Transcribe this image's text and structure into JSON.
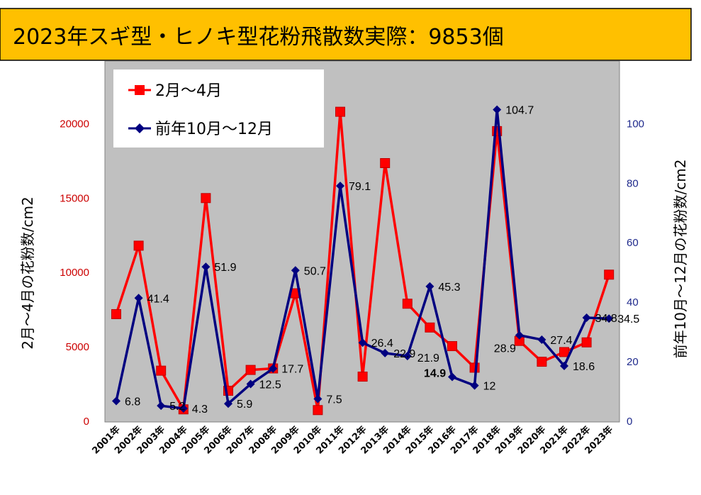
{
  "title": "2023年スギ型・ヒノキ型花粉飛散数実際：9853個",
  "colors": {
    "title_bg": "#FFC000",
    "plot_bg": "#C0C0C0",
    "series_red": "#FF0000",
    "series_navy": "#000080",
    "left_axis_text": "#CC0000",
    "right_axis_text": "#1F2A8C"
  },
  "chart_data": {
    "type": "line",
    "categories": [
      "2001年",
      "2002年",
      "2003年",
      "2004年",
      "2005年",
      "2006年",
      "2007年",
      "2008年",
      "2009年",
      "2010年",
      "2011年",
      "2012年",
      "2013年",
      "2014年",
      "2015年",
      "2016年",
      "2017年",
      "2018年",
      "2019年",
      "2020年",
      "2021年",
      "2022年",
      "2023年"
    ],
    "series": [
      {
        "name": "2月～4月",
        "axis": "left",
        "marker": "square",
        "values": [
          7200,
          11800,
          3400,
          800,
          15000,
          2050,
          3450,
          3550,
          8600,
          750,
          20800,
          3000,
          17350,
          7900,
          6300,
          5050,
          3600,
          19500,
          5400,
          4000,
          4650,
          5300,
          9853
        ]
      },
      {
        "name": "前年10月～12月",
        "axis": "right",
        "marker": "diamond",
        "values": [
          6.8,
          41.4,
          5.2,
          4.3,
          51.9,
          5.9,
          12.5,
          17.7,
          50.7,
          7.5,
          79.1,
          26.4,
          22.9,
          21.9,
          45.3,
          14.9,
          12,
          104.7,
          28.9,
          27.4,
          18.6,
          34.8,
          34.5
        ]
      }
    ],
    "data_labels": [
      "6.8",
      "41.4",
      "5.2",
      "4.3",
      "51.9",
      "5.9",
      "12.5",
      "17.7",
      "50.7",
      "7.5",
      "79.1",
      "26.4",
      "22.9",
      "21.9",
      "45.3",
      "14.9",
      "12",
      "104.7",
      "28.9",
      "27.4",
      "18.6",
      "34.8",
      "34.5"
    ],
    "left_axis": {
      "label": "2月～4月の花粉数/cm2",
      "ylim": [
        0,
        25000
      ],
      "ticks": [
        "0",
        "5000",
        "10000",
        "15000",
        "20000"
      ]
    },
    "right_axis": {
      "label": "前年10月～12月の花粉数/cm2",
      "ylim": [
        0,
        125
      ],
      "ticks": [
        "0",
        "20",
        "40",
        "60",
        "80",
        "100"
      ]
    },
    "legend_position": "top-left",
    "grid": false
  }
}
